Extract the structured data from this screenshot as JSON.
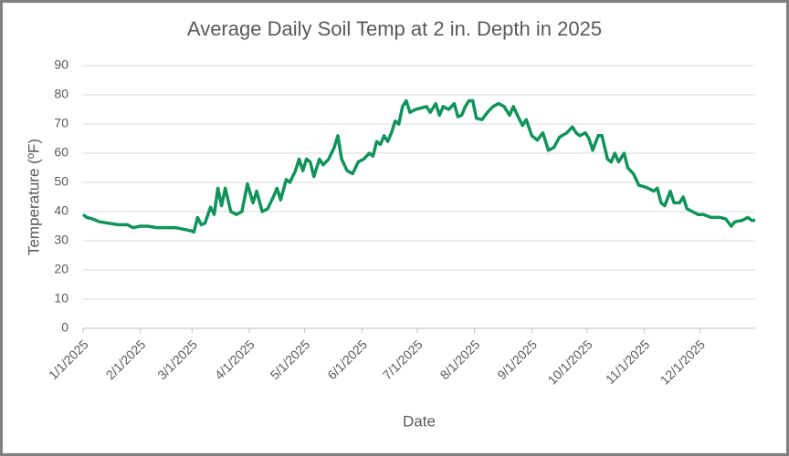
{
  "chart_data": {
    "type": "line",
    "title": "Average Daily Soil Temp at 2 in. Depth in 2025",
    "x_label": "Date",
    "y_label": "Temperature (ºF)",
    "color": "#12935c",
    "grid": true,
    "xlim": [
      "1/1/2025",
      "12/31/2025"
    ],
    "xticks": [
      "1/1/2025",
      "2/1/2025",
      "3/1/2025",
      "4/1/2025",
      "5/1/2025",
      "6/1/2025",
      "7/1/2025",
      "8/1/2025",
      "9/1/2025",
      "10/1/2025",
      "11/1/2025",
      "12/1/2025"
    ],
    "ylim": [
      0,
      90
    ],
    "yticks": [
      0,
      10,
      20,
      30,
      40,
      50,
      60,
      70,
      80,
      90
    ],
    "x": [
      "1/1/2025",
      "1/3/2025",
      "1/6/2025",
      "1/10/2025",
      "1/15/2025",
      "1/20/2025",
      "1/25/2025",
      "1/28/2025",
      "2/1/2025",
      "2/5/2025",
      "2/10/2025",
      "2/15/2025",
      "2/20/2025",
      "2/24/2025",
      "2/28/2025",
      "3/2/2025",
      "3/4/2025",
      "3/6/2025",
      "3/8/2025",
      "3/11/2025",
      "3/13/2025",
      "3/15/2025",
      "3/17/2025",
      "3/19/2025",
      "3/22/2025",
      "3/25/2025",
      "3/28/2025",
      "3/31/2025",
      "4/3/2025",
      "4/5/2025",
      "4/8/2025",
      "4/11/2025",
      "4/14/2025",
      "4/16/2025",
      "4/18/2025",
      "4/21/2025",
      "4/23/2025",
      "4/26/2025",
      "4/28/2025",
      "4/30/2025",
      "5/2/2025",
      "5/4/2025",
      "5/6/2025",
      "5/9/2025",
      "5/11/2025",
      "5/14/2025",
      "5/17/2025",
      "5/19/2025",
      "5/21/2025",
      "5/24/2025",
      "5/27/2025",
      "5/30/2025",
      "6/2/2025",
      "6/5/2025",
      "6/7/2025",
      "6/9/2025",
      "6/11/2025",
      "6/13/2025",
      "6/15/2025",
      "6/17/2025",
      "6/19/2025",
      "6/21/2025",
      "6/23/2025",
      "6/25/2025",
      "6/27/2025",
      "6/30/2025",
      "7/3/2025",
      "7/6/2025",
      "7/8/2025",
      "7/11/2025",
      "7/13/2025",
      "7/15/2025",
      "7/18/2025",
      "7/21/2025",
      "7/23/2025",
      "7/25/2025",
      "7/27/2025",
      "7/29/2025",
      "7/31/2025",
      "8/2/2025",
      "8/5/2025",
      "8/8/2025",
      "8/11/2025",
      "8/14/2025",
      "8/17/2025",
      "8/20/2025",
      "8/22/2025",
      "8/25/2025",
      "8/27/2025",
      "8/29/2025",
      "9/1/2025",
      "9/4/2025",
      "9/7/2025",
      "9/10/2025",
      "9/13/2025",
      "9/16/2025",
      "9/20/2025",
      "9/23/2025",
      "9/25/2025",
      "9/27/2025",
      "9/30/2025",
      "10/2/2025",
      "10/4/2025",
      "10/7/2025",
      "10/9/2025",
      "10/12/2025",
      "10/14/2025",
      "10/16/2025",
      "10/18/2025",
      "10/21/2025",
      "10/23/2025",
      "10/26/2025",
      "10/29/2025",
      "11/1/2025",
      "11/3/2025",
      "11/6/2025",
      "11/8/2025",
      "11/10/2025",
      "11/12/2025",
      "11/15/2025",
      "11/17/2025",
      "11/20/2025",
      "11/22/2025",
      "11/24/2025",
      "11/27/2025",
      "11/30/2025",
      "12/3/2025",
      "12/7/2025",
      "12/12/2025",
      "12/15/2025",
      "12/18/2025",
      "12/20/2025",
      "12/24/2025",
      "12/27/2025",
      "12/29/2025",
      "12/31/2025"
    ],
    "values": [
      39,
      38,
      37.5,
      36.5,
      36,
      35.5,
      35.5,
      34.5,
      35,
      35,
      34.5,
      34.5,
      34.5,
      34,
      33.5,
      33,
      38,
      35.5,
      36,
      41.5,
      39,
      48,
      42,
      48,
      40,
      39,
      40,
      49.5,
      43,
      47,
      40,
      41,
      45,
      48,
      44,
      51,
      50,
      54,
      58,
      54,
      58,
      57,
      52,
      58,
      56,
      58,
      62,
      66,
      58,
      54,
      53,
      57,
      58,
      60,
      59,
      64,
      63,
      66,
      64,
      67,
      71,
      70,
      76,
      78,
      74,
      75,
      75.5,
      76,
      74,
      77,
      73,
      76,
      75,
      77,
      72.5,
      73,
      76,
      78,
      78,
      72,
      71.5,
      74,
      76,
      77,
      76,
      73,
      76,
      72,
      69.5,
      71.5,
      66,
      64.5,
      67,
      61,
      62,
      65.5,
      67,
      69,
      67,
      66,
      67,
      65,
      61,
      66,
      66,
      58,
      57,
      60,
      57,
      60,
      55,
      53,
      49,
      48.5,
      48,
      47,
      48,
      43,
      42,
      47,
      43,
      43,
      45,
      41,
      40,
      39,
      39,
      38,
      38,
      37.5,
      35,
      36.5,
      37,
      38,
      37,
      37
    ]
  }
}
